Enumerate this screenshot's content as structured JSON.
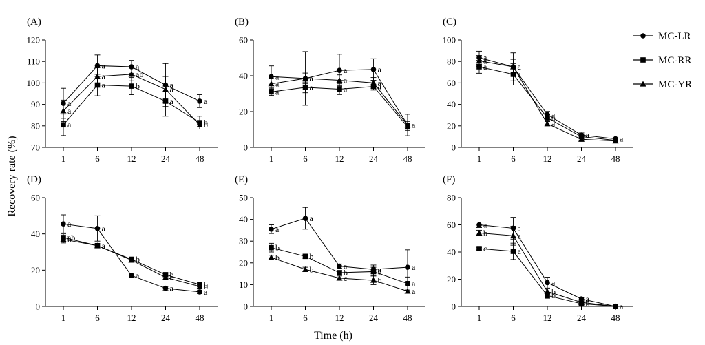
{
  "figure": {
    "ylabel": "Recovery rate (%)",
    "xlabel": "Time (h)",
    "legend": {
      "placement": "right",
      "entries": [
        {
          "name": "MC-LR",
          "marker": "circle"
        },
        {
          "name": "MC-RR",
          "marker": "square"
        },
        {
          "name": "MC-YR",
          "marker": "triangle"
        }
      ]
    }
  },
  "chart_data": [
    {
      "type": "line",
      "panel": "(A)",
      "categories": [
        "1",
        "6",
        "12",
        "24",
        "48"
      ],
      "ylim": [
        70,
        120
      ],
      "yticks": [
        70,
        80,
        90,
        100,
        110,
        120
      ],
      "series": [
        {
          "name": "MC-LR",
          "marker": "circle",
          "values": [
            90.5,
            108,
            107.5,
            99,
            91.5
          ],
          "errors": [
            7,
            5,
            3,
            10,
            3
          ],
          "letters": [
            "a",
            "a",
            "a",
            "a",
            "a"
          ]
        },
        {
          "name": "MC-RR",
          "marker": "square",
          "values": [
            80.5,
            99,
            98.5,
            91.5,
            81.5
          ],
          "errors": [
            5,
            5,
            4,
            7,
            3
          ],
          "letters": [
            "a",
            "a",
            "b",
            "a",
            "b"
          ]
        },
        {
          "name": "MC-YR",
          "marker": "triangle",
          "values": [
            87,
            103,
            104,
            97,
            80.5
          ],
          "errors": [
            5,
            4,
            3,
            6,
            2
          ],
          "letters": [
            "a",
            "a",
            "ab",
            "a",
            "b"
          ]
        }
      ]
    },
    {
      "type": "line",
      "panel": "(B)",
      "categories": [
        "1",
        "6",
        "12",
        "24",
        "48"
      ],
      "ylim": [
        0,
        60
      ],
      "yticks": [
        0,
        20,
        40,
        60
      ],
      "series": [
        {
          "name": "MC-LR",
          "marker": "circle",
          "values": [
            39.5,
            38.5,
            43,
            43.5,
            12.5
          ],
          "errors": [
            6,
            15,
            9,
            6,
            6
          ],
          "letters": [
            "a",
            "a",
            "a",
            "a",
            "a"
          ]
        },
        {
          "name": "MC-RR",
          "marker": "square",
          "values": [
            31,
            33.5,
            32.5,
            34,
            11.5
          ],
          "errors": [
            2,
            3,
            3,
            2,
            2
          ],
          "letters": [
            "a",
            "a",
            "a",
            "a",
            ""
          ]
        },
        {
          "name": "MC-YR",
          "marker": "triangle",
          "values": [
            35.5,
            38.5,
            37.5,
            36,
            12.5
          ],
          "errors": [
            3,
            3,
            3,
            3,
            2
          ],
          "letters": [
            "a",
            "a",
            "a",
            "a",
            ""
          ]
        }
      ]
    },
    {
      "type": "line",
      "panel": "(C)",
      "categories": [
        "1",
        "6",
        "12",
        "24",
        "48"
      ],
      "ylim": [
        0,
        100
      ],
      "yticks": [
        0,
        20,
        40,
        60,
        80,
        100
      ],
      "series": [
        {
          "name": "MC-LR",
          "marker": "circle",
          "values": [
            83.5,
            75,
            30.5,
            11.5,
            8
          ],
          "errors": [
            6,
            13,
            3,
            2,
            1
          ],
          "letters": [
            "a",
            "a",
            "a",
            "a",
            "a"
          ]
        },
        {
          "name": "MC-RR",
          "marker": "square",
          "values": [
            75,
            68,
            27.5,
            10,
            6.5
          ],
          "errors": [
            6,
            10,
            3,
            2,
            1
          ],
          "letters": [
            "a",
            "a",
            "a",
            "",
            ""
          ]
        },
        {
          "name": "MC-YR",
          "marker": "triangle",
          "values": [
            80.5,
            75,
            22,
            7.5,
            6
          ],
          "errors": [
            5,
            7,
            2,
            1,
            1
          ],
          "letters": [
            "a",
            "a",
            "a",
            "",
            ""
          ]
        }
      ]
    },
    {
      "type": "line",
      "panel": "(D)",
      "categories": [
        "1",
        "6",
        "12",
        "24",
        "48"
      ],
      "ylim": [
        0,
        60
      ],
      "yticks": [
        0,
        20,
        40,
        60
      ],
      "series": [
        {
          "name": "MC-LR",
          "marker": "circle",
          "values": [
            45.5,
            43,
            17,
            10,
            8
          ],
          "errors": [
            5,
            7,
            1,
            1,
            1
          ],
          "letters": [
            "a",
            "a",
            "a",
            "a",
            "a"
          ]
        },
        {
          "name": "MC-RR",
          "marker": "square",
          "values": [
            38,
            33.5,
            26,
            17.5,
            12
          ],
          "errors": [
            2,
            1,
            1,
            1,
            1
          ],
          "letters": [
            "ab",
            "a",
            "b",
            "b",
            "b"
          ]
        },
        {
          "name": "MC-YR",
          "marker": "triangle",
          "values": [
            37,
            33.5,
            25.5,
            16,
            11
          ],
          "errors": [
            2,
            1,
            1,
            1,
            1
          ],
          "letters": [
            "b",
            "",
            "",
            "b",
            "b"
          ]
        }
      ]
    },
    {
      "type": "line",
      "panel": "(E)",
      "categories": [
        "1",
        "6",
        "12",
        "24",
        "48"
      ],
      "ylim": [
        0,
        50
      ],
      "yticks": [
        0,
        10,
        20,
        30,
        40,
        50
      ],
      "series": [
        {
          "name": "MC-LR",
          "marker": "circle",
          "values": [
            35.5,
            40.5,
            18.5,
            17,
            18
          ],
          "errors": [
            2,
            5,
            1,
            2,
            8
          ],
          "letters": [
            "a",
            "a",
            "a",
            "a",
            "a"
          ]
        },
        {
          "name": "MC-RR",
          "marker": "square",
          "values": [
            27,
            23,
            15.5,
            16,
            10.5
          ],
          "errors": [
            2,
            1,
            1,
            2,
            3
          ],
          "letters": [
            "b",
            "b",
            "b",
            "b",
            "a"
          ]
        },
        {
          "name": "MC-YR",
          "marker": "triangle",
          "values": [
            22.5,
            17,
            13,
            12,
            7
          ],
          "errors": [
            1,
            1,
            1,
            2,
            1
          ],
          "letters": [
            "b",
            "b",
            "c",
            "b",
            "a"
          ]
        }
      ]
    },
    {
      "type": "line",
      "panel": "(F)",
      "categories": [
        "1",
        "6",
        "12",
        "24",
        "48"
      ],
      "ylim": [
        0,
        80
      ],
      "yticks": [
        0,
        20,
        40,
        60,
        80
      ],
      "series": [
        {
          "name": "MC-LR",
          "marker": "circle",
          "values": [
            60,
            57.5,
            17.5,
            5.5,
            0
          ],
          "errors": [
            2,
            8,
            4,
            1,
            0
          ],
          "letters": [
            "a",
            "a",
            "a",
            "a",
            "a"
          ]
        },
        {
          "name": "MC-RR",
          "marker": "square",
          "values": [
            42.5,
            40.5,
            8,
            2,
            0
          ],
          "errors": [
            1,
            6,
            2,
            1,
            0
          ],
          "letters": [
            "c",
            "a",
            "b",
            "b",
            ""
          ]
        },
        {
          "name": "MC-YR",
          "marker": "triangle",
          "values": [
            54,
            52,
            11,
            3,
            0
          ],
          "errors": [
            2,
            7,
            2,
            1,
            0
          ],
          "letters": [
            "b",
            "a",
            "b",
            "b",
            ""
          ]
        }
      ]
    }
  ]
}
